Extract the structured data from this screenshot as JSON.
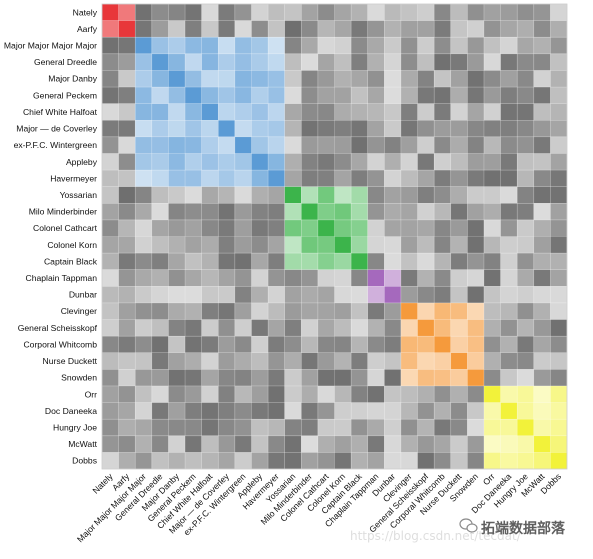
{
  "chart_data": {
    "type": "heatmap",
    "title": "",
    "xlabel": "",
    "ylabel": "",
    "grid": true,
    "labels": [
      "Nately",
      "Aarfy",
      "Major Major Major Major",
      "General Dreedle",
      "Major Danby",
      "General Peckem",
      "Chief White Halfoat",
      "Major — de Coverley",
      "ex-P.F.C. Wintergreen",
      "Appleby",
      "Havermeyer",
      "Yossarian",
      "Milo Minderbinder",
      "Colonel Cathcart",
      "Colonel Korn",
      "Captain Black",
      "Chaplain Tappman",
      "Dunbar",
      "Clevinger",
      "General Scheisskopf",
      "Corporal Whitcomb",
      "Nurse Duckett",
      "Snowden",
      "Orr",
      "Doc Daneeka",
      "Hungry Joe",
      "McWatt",
      "Dobbs"
    ],
    "x_tick_labels": [
      "Nately",
      "Aarfy",
      "Major Major Major Major",
      "General Dreedle",
      "Major Danby",
      "General Peckem",
      "Chief White Halfoat",
      "Major — de Coverley",
      "ex-P.F.C. Wintergreen",
      "Appleby",
      "Havermeyer",
      "Yossarian",
      "Milo Minderbinder",
      "Colonel Cathcart",
      "Colonel Korn",
      "Captain Black",
      "Chaplain Tappman",
      "Dunbar",
      "Clevinger",
      "General Scheisskopf",
      "Corporal Whitcomb",
      "Nurse Duckett",
      "Snowden",
      "Orr",
      "Doc Daneeka",
      "Hungry Joe",
      "McWatt",
      "Dobbs"
    ],
    "y_tick_labels": [
      "Nately",
      "Aarfy",
      "Major Major Major Major",
      "General Dreedle",
      "Major Danby",
      "General Peckem",
      "Chief White Halfoat",
      "Major — de Coverley",
      "ex-P.F.C. Wintergreen",
      "Appleby",
      "Havermeyer",
      "Yossarian",
      "Milo Minderbinder",
      "Colonel Cathcart",
      "Colonel Korn",
      "Captain Black",
      "Chaplain Tappman",
      "Dunbar",
      "Clevinger",
      "General Scheisskopf",
      "Corporal Whitcomb",
      "Nurse Duckett",
      "Snowden",
      "Orr",
      "Doc Daneeka",
      "Hungry Joe",
      "McWatt",
      "Dobbs"
    ],
    "clusters": [
      {
        "start": 0,
        "end": 1,
        "color": "#e8373a"
      },
      {
        "start": 2,
        "end": 10,
        "color": "#5b9bd5"
      },
      {
        "start": 11,
        "end": 15,
        "color": "#3cb44b"
      },
      {
        "start": 16,
        "end": 17,
        "color": "#a569bd"
      },
      {
        "start": 18,
        "end": 22,
        "color": "#f59a3c"
      },
      {
        "start": 23,
        "end": 27,
        "color": "#f2f23a"
      }
    ],
    "value_range": [
      0,
      1
    ]
  },
  "watermark": {
    "brand": "拓端数据部落",
    "url": "https://blog.csdn.net/tecdat/"
  }
}
